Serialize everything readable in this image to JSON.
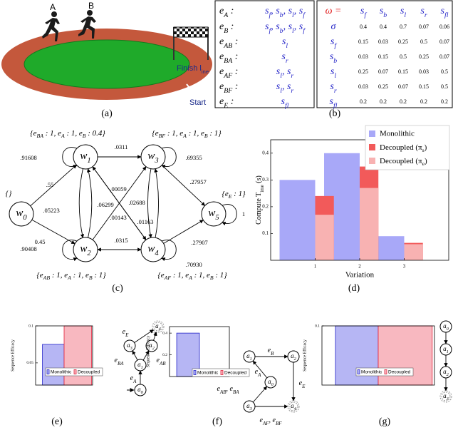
{
  "figure": {
    "a": {
      "caption": "(a)",
      "runner_labels": [
        "A",
        "B"
      ],
      "finish": "Finish line",
      "start": "Start"
    },
    "b": {
      "caption": "(b)",
      "events": [
        [
          "eA :",
          "sf, sb, sl, sf"
        ],
        [
          "eB :",
          "sf, sb, sl, sf"
        ],
        [
          "eAB :",
          "sl"
        ],
        [
          "eBA :",
          "sr"
        ],
        [
          "eAF :",
          "sl, sr"
        ],
        [
          "eBF :",
          "sl, sr"
        ],
        [
          "eE :",
          "sfl"
        ]
      ],
      "omega": {
        "header": [
          "ω =",
          "sf",
          "sb",
          "sl",
          "sr",
          "sfl"
        ],
        "rows": [
          [
            "σ",
            "0.4",
            "0.4",
            "0.7",
            "0.07",
            "0.06"
          ],
          [
            "sf",
            "0.15",
            "0.03",
            "0.25",
            "0.5",
            "0.07"
          ],
          [
            "sb",
            "0.03",
            "0.15",
            "0.5",
            "0.25",
            "0.07"
          ],
          [
            "sl",
            "0.25",
            "0.07",
            "0.15",
            "0.03",
            "0.5"
          ],
          [
            "sr",
            "0.03",
            "0.25",
            "0.07",
            "0.15",
            "0.5"
          ],
          [
            "sfl",
            "0.2",
            "0.2",
            "0.2",
            "0.2",
            "0.2"
          ]
        ]
      }
    },
    "c": {
      "caption": "(c)",
      "nodes": [
        "w0",
        "w1",
        "w2",
        "w3",
        "w4",
        "w5"
      ],
      "edges": [
        ".91608",
        ".55",
        ".05223",
        "0.45",
        ".90408",
        ".0311",
        ".69355",
        ".00059",
        ".06299",
        ".02688",
        ".27957",
        ".01163",
        ".00143",
        ".0315",
        ".27907",
        ".70930",
        "1"
      ],
      "label_sets": [
        "{eBA : 1, eA : 1, eB : 0.4}",
        "{eBF : 1, eA : 1, eB : 1}",
        "{}",
        "{eE : 1}",
        "{eAB : 1, eA : 1, eB : 1}",
        "{eAF : 1, eA : 1, eB : 1}"
      ]
    },
    "d": {
      "caption": "(d)"
    },
    "e": {
      "caption": "(e)",
      "nodes": [
        "a4",
        "a3",
        "a2",
        "a1",
        "a0"
      ],
      "edge_labels": [
        "eE",
        "eE",
        "eBA",
        "eAB",
        "eA"
      ]
    },
    "f": {
      "caption": "(f)",
      "nodes": [
        "a1",
        "a2",
        "a0",
        "a3",
        "a4"
      ],
      "edge_labels": [
        "eB",
        "eA",
        "eAB, eBA",
        "eE",
        "eAF, eBF"
      ]
    },
    "g": {
      "caption": "(g)",
      "nodes": [
        "a0",
        "a1",
        "a2",
        "a3"
      ]
    }
  },
  "chart_data": [
    {
      "type": "bar",
      "ylabel": "Compute Time (s)",
      "xlabel": "Variation",
      "x": [
        1,
        2,
        3
      ],
      "xlim": [
        0,
        4
      ],
      "xticks": [
        1,
        2,
        3
      ],
      "ylim": [
        0,
        0.45
      ],
      "yticks": [
        0.1,
        0.2,
        0.3,
        0.4
      ],
      "legend": "upper right",
      "series": [
        {
          "name": "Monolithic",
          "color": "#a8a8f8",
          "values": [
            0.3,
            0.4,
            0.09
          ]
        },
        {
          "name": "Decoupled (πs)",
          "color": "#f25a5a",
          "values": [
            0.24,
            0.35,
            0.065
          ]
        },
        {
          "name": "Decoupled (πe)",
          "color": "#f8b2b2",
          "values": [
            0.17,
            0.27,
            0.06
          ]
        }
      ]
    },
    {
      "type": "bar",
      "ylabel": "Sequence Efficacy",
      "ylim": [
        0.02,
        0.1
      ],
      "yticks": [
        0.05,
        0.1
      ],
      "legend": "lower center",
      "series": [
        {
          "name": "Monolithic",
          "color": "#b6b6f4",
          "edgecolor": "#2020c8",
          "values": [
            0.075
          ]
        },
        {
          "name": "Decoupled",
          "color": "#f8b8c0",
          "edgecolor": "#e0203a",
          "values": [
            0.1
          ]
        }
      ]
    },
    {
      "type": "bar",
      "ylabel": "Sequence Efficacy",
      "ylim": [
        0,
        0.46
      ],
      "yticks": [
        0.2,
        0.4
      ],
      "legend": "lower center",
      "series": [
        {
          "name": "Monolithic",
          "color": "#b6b6f4",
          "edgecolor": "#2020c8",
          "values": [
            0.4
          ]
        },
        {
          "name": "Decoupled",
          "color": "#f8b8c0",
          "edgecolor": "#e0203a",
          "values": [
            0.03
          ]
        }
      ]
    },
    {
      "type": "bar",
      "ylabel": "Sequence Efficacy",
      "ylim": [
        0,
        0.1
      ],
      "yticks": [
        0.1
      ],
      "legend": "lower center",
      "series": [
        {
          "name": "Monolithic",
          "color": "#b6b6f4",
          "edgecolor": "#2020c8",
          "values": [
            0.1
          ]
        },
        {
          "name": "Decoupled",
          "color": "#f8b8c0",
          "edgecolor": "#e0203a",
          "values": [
            0.1
          ]
        }
      ]
    }
  ]
}
